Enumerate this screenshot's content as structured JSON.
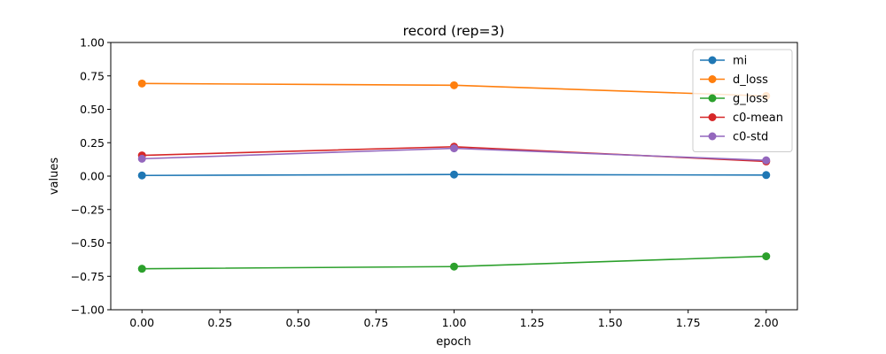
{
  "chart_data": {
    "type": "line",
    "title": "record (rep=3)",
    "xlabel": "epoch",
    "ylabel": "values",
    "x": [
      0,
      1,
      2
    ],
    "xlim": [
      -0.1,
      2.1
    ],
    "ylim": [
      -1.0,
      1.0
    ],
    "xticks": [
      "0.00",
      "0.25",
      "0.50",
      "0.75",
      "1.00",
      "1.25",
      "1.50",
      "1.75",
      "2.00"
    ],
    "xtick_values": [
      0,
      0.25,
      0.5,
      0.75,
      1.0,
      1.25,
      1.5,
      1.75,
      2.0
    ],
    "yticks": [
      "−1.00",
      "−0.75",
      "−0.50",
      "−0.25",
      "0.00",
      "0.25",
      "0.50",
      "0.75",
      "1.00"
    ],
    "ytick_values": [
      -1.0,
      -0.75,
      -0.5,
      -0.25,
      0.0,
      0.25,
      0.5,
      0.75,
      1.0
    ],
    "grid": false,
    "legend_position": "top-right",
    "series": [
      {
        "name": "mi",
        "color": "#1f77b4",
        "values": [
          0.005,
          0.012,
          0.008
        ]
      },
      {
        "name": "d_loss",
        "color": "#ff7f0e",
        "values": [
          0.693,
          0.68,
          0.6
        ]
      },
      {
        "name": "g_loss",
        "color": "#2ca02c",
        "values": [
          -0.693,
          -0.677,
          -0.6
        ]
      },
      {
        "name": "c0-mean",
        "color": "#d62728",
        "values": [
          0.155,
          0.22,
          0.11
        ]
      },
      {
        "name": "c0-std",
        "color": "#9467bd",
        "values": [
          0.13,
          0.208,
          0.118
        ]
      }
    ]
  }
}
